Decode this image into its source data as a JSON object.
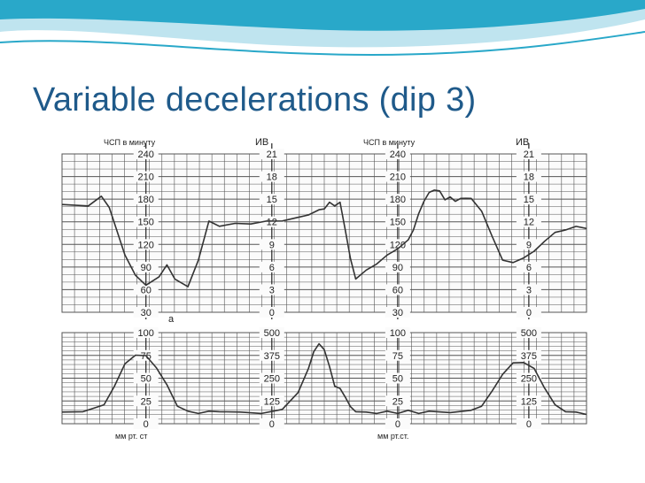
{
  "slide": {
    "title": "Variable decelerations (dip 3)"
  },
  "colors": {
    "title": "#1f5a8a",
    "wave_dark": "#29a8c9",
    "wave_light": "#bfe4ef",
    "trace": "#333333",
    "grid": "#555555"
  },
  "chart_data": [
    {
      "type": "line",
      "panel": "fetal-heart-rate",
      "time_range": [
        0,
        100
      ],
      "ylim": [
        30,
        240
      ],
      "left_axis": {
        "label": "ЧСП в минуту",
        "ticks": [
          "240",
          "210",
          "180",
          "150",
          "120",
          "90",
          "60",
          "30"
        ]
      },
      "axis_sets": [
        {
          "label": "ИВ",
          "ticks": [
            "21",
            "18",
            "15",
            "12",
            "9",
            "6",
            "3",
            "0"
          ]
        },
        {
          "label": "ЧСП в минуту",
          "ticks": [
            "240",
            "210",
            "180",
            "150",
            "120",
            "90",
            "60",
            "30"
          ]
        },
        {
          "label": "ИВ",
          "ticks": [
            "21",
            "18",
            "15",
            "12",
            "9",
            "6",
            "3",
            "0"
          ]
        }
      ],
      "annotation": "а",
      "series": [
        {
          "x": [
            0,
            5,
            7.5,
            9,
            12,
            14,
            16,
            18.5,
            20,
            21.5,
            24,
            26,
            28,
            30,
            33,
            36,
            39,
            42,
            45,
            47,
            49,
            50,
            51,
            52,
            53,
            54,
            55,
            56,
            58,
            60,
            62,
            64,
            66,
            67,
            68,
            69,
            70,
            71,
            72,
            73,
            74,
            75,
            76,
            77,
            78,
            80,
            82,
            84,
            86,
            88,
            90,
            92,
            94,
            96,
            98,
            100
          ],
          "y": [
            172,
            172,
            183,
            170,
            105,
            80,
            65,
            78,
            92,
            75,
            63,
            100,
            150,
            145,
            147,
            148,
            150,
            152,
            155,
            160,
            165,
            168,
            175,
            172,
            175,
            140,
            100,
            75,
            85,
            95,
            105,
            115,
            125,
            140,
            160,
            178,
            188,
            193,
            190,
            180,
            182,
            178,
            180,
            182,
            180,
            165,
            130,
            100,
            95,
            103,
            110,
            125,
            135,
            140,
            143,
            142
          ]
        }
      ]
    },
    {
      "type": "line",
      "panel": "uterine-contractions",
      "time_range": [
        0,
        100
      ],
      "ylim": [
        0,
        100
      ],
      "left_axis": {
        "label": "мм рт. ст",
        "ticks": [
          "100",
          "75",
          "50",
          "25",
          "0"
        ]
      },
      "axis_sets": [
        {
          "label": "мм рт.ст.",
          "ticks": [
            "500",
            "375",
            "250",
            "125",
            "0"
          ]
        },
        {
          "label": "",
          "ticks": [
            "100",
            "75",
            "50",
            "25",
            "0"
          ]
        },
        {
          "label": "",
          "ticks": [
            "500",
            "375",
            "250",
            "125",
            "0"
          ]
        }
      ],
      "series": [
        {
          "x": [
            0,
            4,
            8,
            10,
            12,
            14,
            16,
            18,
            20,
            22,
            24,
            26,
            28,
            30,
            34,
            38,
            42,
            45,
            47,
            48,
            49,
            50,
            51,
            52,
            53,
            54,
            55,
            56,
            58,
            60,
            62,
            64,
            66,
            68,
            70,
            74,
            78,
            80,
            82,
            84,
            86,
            88,
            90,
            92,
            94,
            96,
            98,
            100
          ],
          "y": [
            12,
            14,
            20,
            42,
            65,
            76,
            74,
            62,
            42,
            20,
            13,
            12,
            13,
            14,
            12,
            12,
            15,
            35,
            60,
            80,
            87,
            82,
            62,
            42,
            38,
            30,
            18,
            14,
            12,
            12,
            13,
            12,
            14,
            12,
            13,
            13,
            14,
            20,
            35,
            55,
            66,
            68,
            60,
            40,
            20,
            14,
            12,
            11
          ]
        }
      ]
    }
  ]
}
